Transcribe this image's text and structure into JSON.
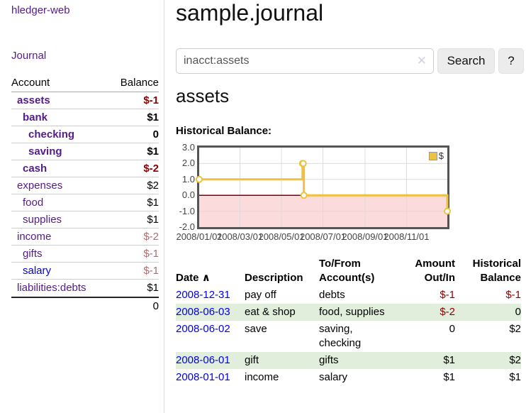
{
  "app": {
    "title": "hledger-web"
  },
  "sidebar": {
    "journal_link": "Journal",
    "accounts_table": {
      "headers": {
        "account": "Account",
        "balance": "Balance"
      },
      "rows": [
        {
          "name": "assets",
          "indent": 1,
          "bold": true,
          "balance": "$-1",
          "neg": true
        },
        {
          "name": "bank",
          "indent": 2,
          "bold": true,
          "balance": "$1",
          "neg": false
        },
        {
          "name": "checking",
          "indent": 3,
          "bold": true,
          "balance": "0",
          "neg": false
        },
        {
          "name": "saving",
          "indent": 3,
          "bold": true,
          "balance": "$1",
          "neg": false
        },
        {
          "name": "cash",
          "indent": 2,
          "bold": true,
          "balance": "$-2",
          "neg": true
        },
        {
          "name": "expenses",
          "indent": 1,
          "bold": false,
          "balance": "$2",
          "neg": false
        },
        {
          "name": "food",
          "indent": 2,
          "bold": false,
          "balance": "$1",
          "neg": false
        },
        {
          "name": "supplies",
          "indent": 2,
          "bold": false,
          "balance": "$1",
          "neg": false
        },
        {
          "name": "income",
          "indent": 1,
          "bold": false,
          "balance": "$-2",
          "neg": true
        },
        {
          "name": "gifts",
          "indent": 2,
          "bold": false,
          "balance": "$-1",
          "neg": true
        },
        {
          "name": "salary",
          "indent": 2,
          "bold": false,
          "balance": "$-1",
          "neg": true,
          "unvisited": true
        },
        {
          "name": "liabilities:debts",
          "indent": 1,
          "bold": false,
          "balance": "$1",
          "neg": false
        }
      ],
      "total": "0"
    }
  },
  "header": {
    "title": "sample.journal"
  },
  "search": {
    "value": "inacct:assets",
    "clear_icon": "✕",
    "button": "Search",
    "help_button": "?"
  },
  "account_view": {
    "title": "assets",
    "chart_label": "Historical Balance:"
  },
  "chart_data": {
    "type": "line",
    "step": true,
    "series": [
      {
        "name": "$",
        "color": "#edc240",
        "points": [
          [
            "2008-01-01",
            1
          ],
          [
            "2008-06-01",
            2
          ],
          [
            "2008-06-02",
            2
          ],
          [
            "2008-06-03",
            0
          ],
          [
            "2008-12-31",
            -1
          ]
        ]
      }
    ],
    "x_range": [
      "2008-01-01",
      "2008-12-31"
    ],
    "x_ticks": [
      "2008/01/01",
      "2008/03/01",
      "2008/05/01",
      "2008/07/01",
      "2008/09/01",
      "2008/11/01"
    ],
    "y_ticks": [
      "3.0",
      "2.0",
      "1.0",
      "0.0",
      "-1.0",
      "-2.0"
    ],
    "ylim": [
      -2,
      3
    ],
    "grid": true,
    "legend_position": "top-right",
    "negative_region_fill": "#fbdbdb",
    "zero_line_color": "#800000",
    "gridline_color": "#dcdcdc",
    "title": "",
    "xlabel": "",
    "ylabel": ""
  },
  "register": {
    "sort_caret": "∧",
    "headers": [
      "Date",
      "Description",
      "To/From Account(s)",
      "Amount Out/In",
      "Historical Balance"
    ],
    "rows": [
      {
        "date": "2008-12-31",
        "description": "pay off",
        "accounts": "debts",
        "amount": "$-1",
        "amount_neg": true,
        "balance": "$-1",
        "balance_neg": true
      },
      {
        "date": "2008-06-03",
        "description": "eat & shop",
        "accounts": "food, supplies",
        "amount": "$-2",
        "amount_neg": true,
        "balance": "0",
        "balance_neg": false
      },
      {
        "date": "2008-06-02",
        "description": "save",
        "accounts": "saving,\nchecking",
        "amount": "0",
        "amount_neg": false,
        "balance": "$2",
        "balance_neg": false
      },
      {
        "date": "2008-06-01",
        "description": "gift",
        "accounts": "gifts",
        "amount": "$1",
        "amount_neg": false,
        "balance": "$2",
        "balance_neg": false
      },
      {
        "date": "2008-01-01",
        "description": "income",
        "accounts": "salary",
        "amount": "$1",
        "amount_neg": false,
        "balance": "$1",
        "balance_neg": false
      }
    ]
  },
  "colors": {
    "link_purple": "#551a8b",
    "link_blue": "#0000ee",
    "negative_red": "#8b0000",
    "muted_negative_red": "#b36b6b",
    "row_green": "#e0eedb",
    "chart_line_yellow": "#edc240",
    "chart_negative_fill": "#fbdbdb",
    "chart_zero_line": "#800000",
    "chart_border_gray": "#545454"
  }
}
